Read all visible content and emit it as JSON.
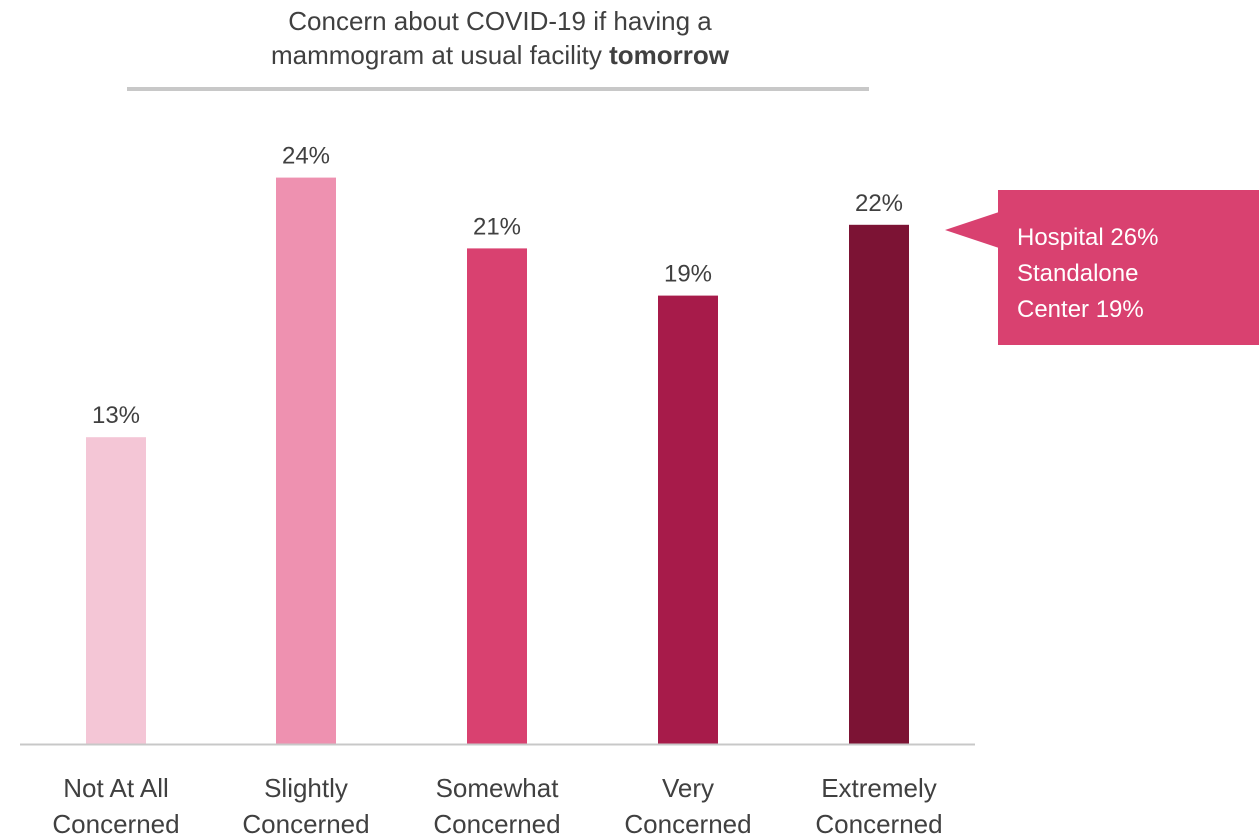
{
  "chart_data": {
    "type": "bar",
    "title_line1": "Concern about COVID-19 if having a",
    "title_line2_prefix": "mammogram at usual facility ",
    "title_line2_bold": "tomorrow",
    "categories": [
      [
        "Not At All",
        "Concerned"
      ],
      [
        "Slightly",
        "Concerned"
      ],
      [
        "Somewhat",
        "Concerned"
      ],
      [
        "Very",
        "Concerned"
      ],
      [
        "Extremely",
        "Concerned"
      ]
    ],
    "values": [
      13,
      24,
      21,
      19,
      22
    ],
    "value_labels": [
      "13%",
      "24%",
      "21%",
      "19%",
      "22%"
    ],
    "colors": [
      "#f4c6d6",
      "#ee91b0",
      "#d94170",
      "#a71b4a",
      "#7c1334"
    ],
    "ylim": [
      0,
      25
    ],
    "grid": false,
    "annotation": {
      "target_category_index": 4,
      "lines": [
        "Hospital 26%",
        "Standalone",
        "Center 19%"
      ],
      "color": "#d94170"
    }
  }
}
